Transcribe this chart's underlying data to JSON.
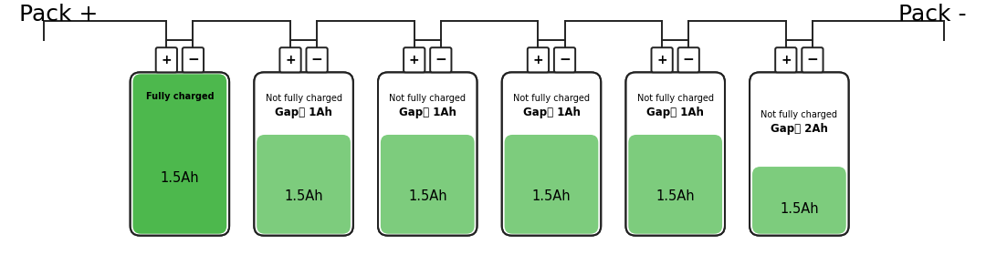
{
  "figsize": [
    10.8,
    2.8
  ],
  "dpi": 100,
  "bg_color": "#ffffff",
  "pack_plus_label": "Pack +",
  "pack_minus_label": "Pack -",
  "cells": [
    {
      "label1": "Fully charged",
      "label2": "",
      "label3": "1.5Ah",
      "fill_ratio": 1.0
    },
    {
      "label1": "Not fully charged",
      "label2": "Gap： 1Ah",
      "label3": "1.5Ah",
      "fill_ratio": 0.62
    },
    {
      "label1": "Not fully charged",
      "label2": "Gap： 1Ah",
      "label3": "1.5Ah",
      "fill_ratio": 0.62
    },
    {
      "label1": "Not fully charged",
      "label2": "Gap： 1Ah",
      "label3": "1.5Ah",
      "fill_ratio": 0.62
    },
    {
      "label1": "Not fully charged",
      "label2": "Gap： 1Ah",
      "label3": "1.5Ah",
      "fill_ratio": 0.62
    },
    {
      "label1": "Not fully charged",
      "label2": "Gap： 2Ah",
      "label3": "1.5Ah",
      "fill_ratio": 0.42
    }
  ],
  "cell_color_full": "#4db84d",
  "cell_color_partial": "#7dcc7d",
  "cell_outline": "#222222",
  "cell_bg": "#ffffff",
  "terminal_color": "#ffffff",
  "terminal_outline": "#222222",
  "wire_color": "#222222",
  "label1_fontsize": 7.0,
  "label2_fontsize": 8.5,
  "label3_fontsize": 10.5,
  "pack_fontsize": 18
}
